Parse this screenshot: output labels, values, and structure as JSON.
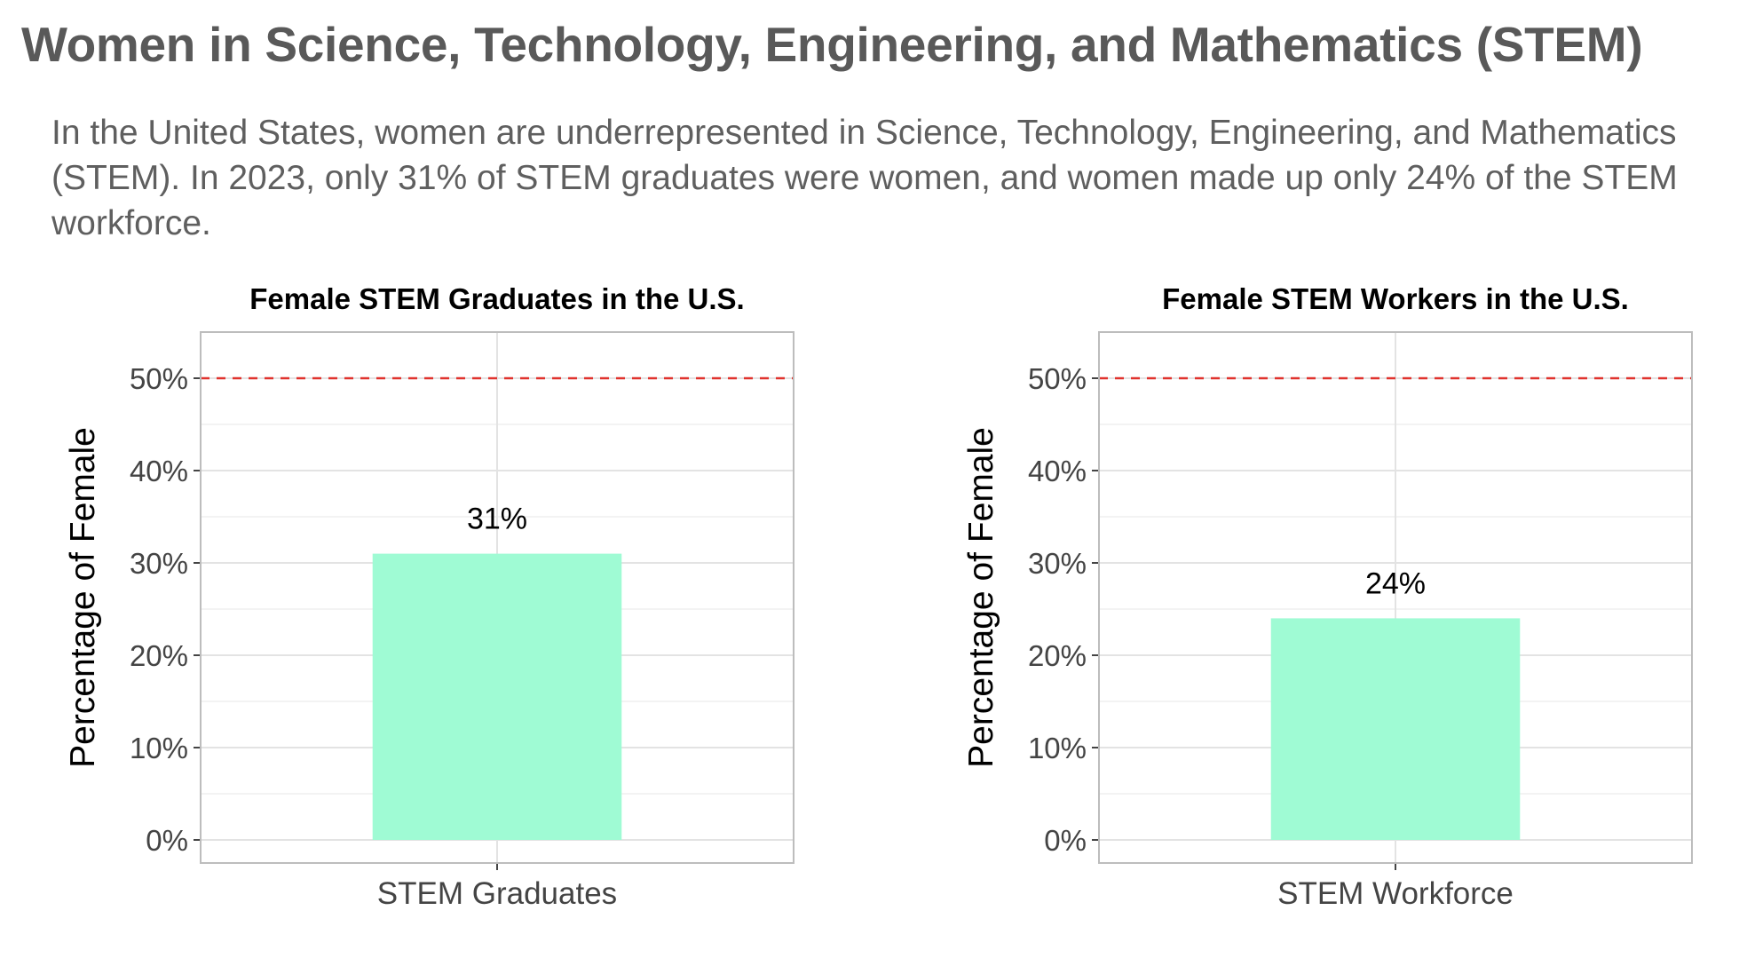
{
  "page": {
    "title": "Women in Science, Technology, Engineering, and Mathematics (STEM)",
    "subtitle": "In the United States, women are underrepresented in Science, Technology, Engineering, and Mathematics (STEM). In 2023, only 31% of STEM graduates were women, and women made up only 24% of the STEM workforce."
  },
  "colors": {
    "bar": "#9ffbd4",
    "reference_line": "#e0322d",
    "title": "#595959",
    "subtitle": "#5f5f5f",
    "grid": "#e3e3e3",
    "panel_border": "#bdbdbd",
    "tick_label": "#444444",
    "text": "#000000"
  },
  "chart_data": [
    {
      "type": "bar",
      "title": "Female STEM Graduates in the U.S.",
      "ylabel": "Percentage of Female",
      "xlabel": "",
      "categories": [
        "STEM Graduates"
      ],
      "values": [
        31
      ],
      "value_labels": [
        "31%"
      ],
      "ylim": [
        0,
        55
      ],
      "yticks": [
        0,
        10,
        20,
        30,
        40,
        50
      ],
      "ytick_labels": [
        "0%",
        "10%",
        "20%",
        "30%",
        "40%",
        "50%"
      ],
      "reference_line": {
        "value": 50,
        "style": "dashed"
      },
      "grid": true,
      "legend": "none"
    },
    {
      "type": "bar",
      "title": "Female STEM Workers in the U.S.",
      "ylabel": "Percentage of Female",
      "xlabel": "",
      "categories": [
        "STEM Workforce"
      ],
      "values": [
        24
      ],
      "value_labels": [
        "24%"
      ],
      "ylim": [
        0,
        55
      ],
      "yticks": [
        0,
        10,
        20,
        30,
        40,
        50
      ],
      "ytick_labels": [
        "0%",
        "10%",
        "20%",
        "30%",
        "40%",
        "50%"
      ],
      "reference_line": {
        "value": 50,
        "style": "dashed"
      },
      "grid": true,
      "legend": "none"
    }
  ]
}
